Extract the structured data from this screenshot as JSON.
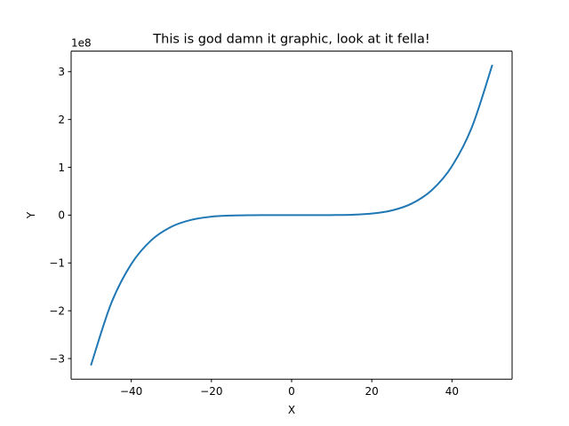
{
  "chart_data": {
    "type": "line",
    "title": "This is god damn it graphic, look at it fella!",
    "xlabel": "X",
    "ylabel": "Y",
    "y_offset_label": "1e8",
    "xlim": [
      -55,
      55
    ],
    "ylim": [
      -3.43,
      3.43
    ],
    "y_scale_factor": 100000000,
    "xticks": [
      -40,
      -20,
      0,
      20,
      40
    ],
    "xtick_labels": [
      "−40",
      "−20",
      "0",
      "20",
      "40"
    ],
    "yticks": [
      -3,
      -2,
      -1,
      0,
      1,
      2,
      3
    ],
    "ytick_labels": [
      "−3",
      "−2",
      "−1",
      "0",
      "1",
      "2",
      "3"
    ],
    "grid": false,
    "legend": "none",
    "series": [
      {
        "color": "#1f77b4",
        "x": [
          -50,
          -45,
          -40,
          -35,
          -30,
          -25,
          -20,
          -15,
          -10,
          -5,
          0,
          5,
          10,
          15,
          20,
          25,
          30,
          35,
          40,
          45,
          50
        ],
        "y": [
          -3.125,
          -1.845,
          -1.024,
          -0.525,
          -0.243,
          -0.098,
          -0.032,
          -0.008,
          -0.001,
          0,
          0,
          0,
          0.001,
          0.008,
          0.032,
          0.098,
          0.243,
          0.525,
          1.024,
          1.845,
          3.125
        ]
      }
    ]
  }
}
